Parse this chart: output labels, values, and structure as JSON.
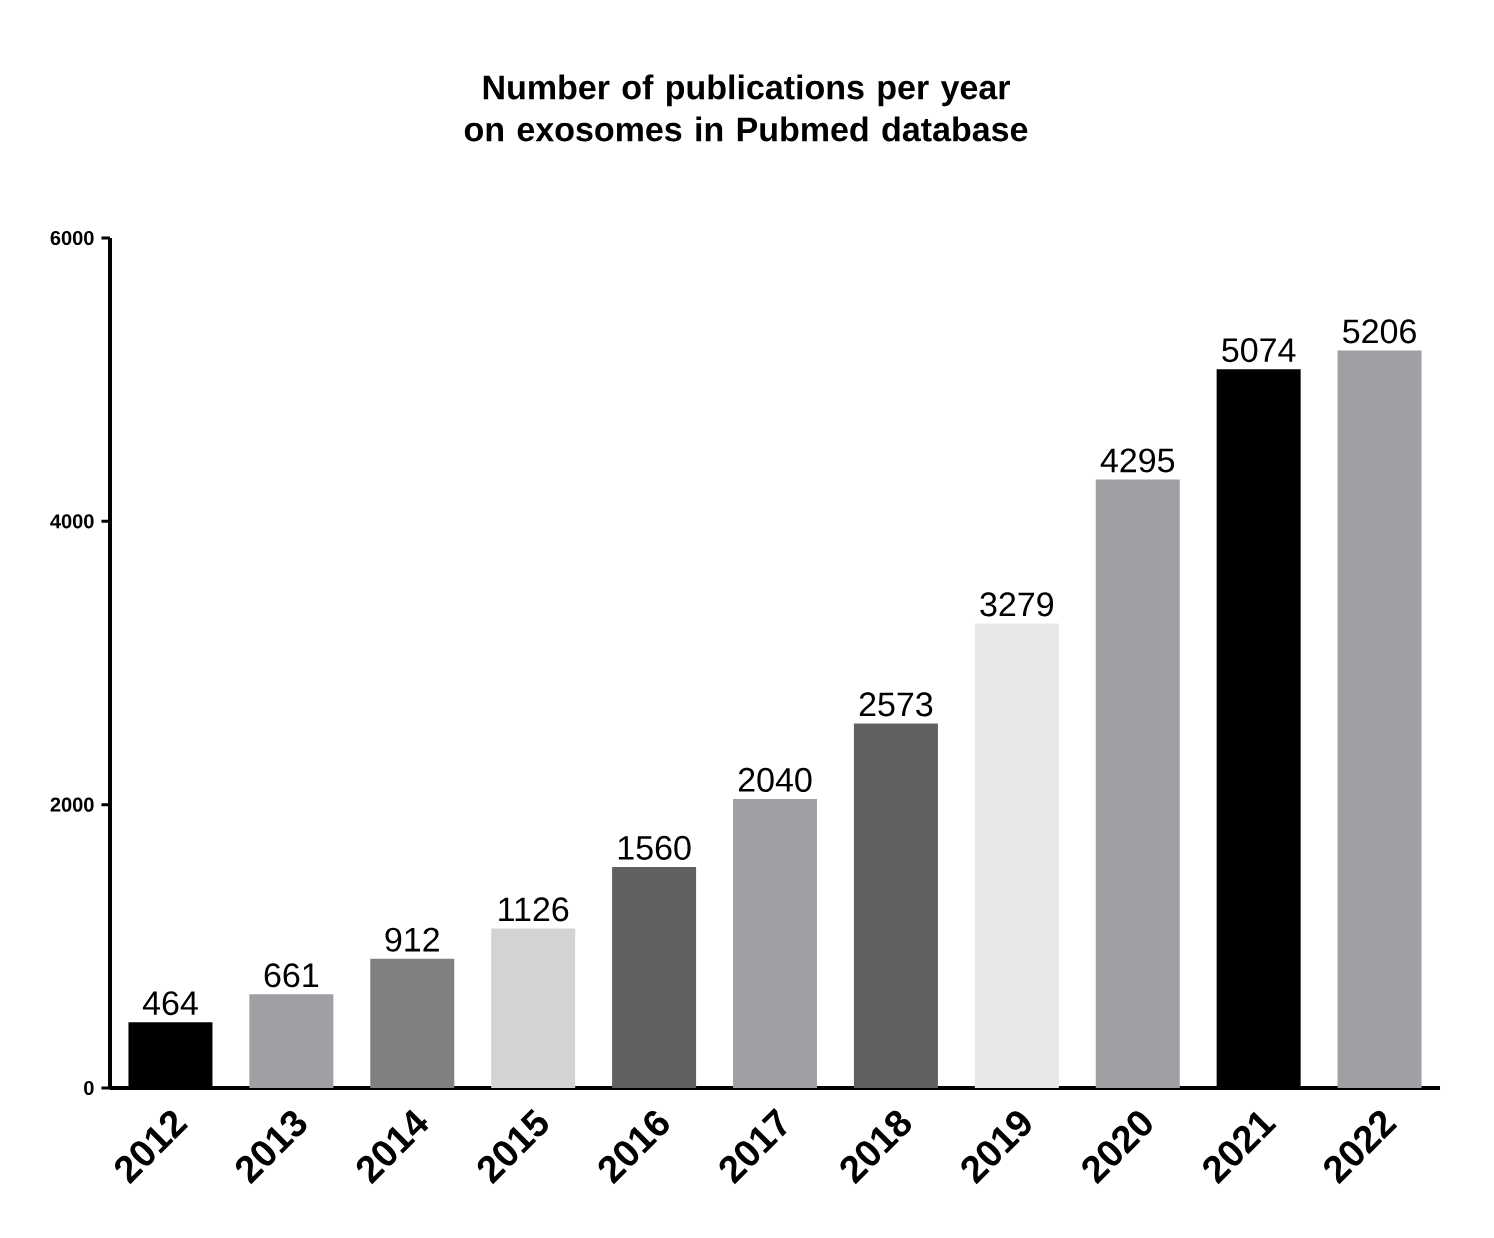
{
  "chart_data": {
    "type": "bar",
    "title": "Number of publications per year on exosomes in Pubmed database",
    "categories": [
      "2012",
      "2013",
      "2014",
      "2015",
      "2016",
      "2017",
      "2018",
      "2019",
      "2020",
      "2021",
      "2022"
    ],
    "values": [
      464,
      661,
      912,
      1126,
      1560,
      2040,
      2573,
      3279,
      4295,
      5074,
      5206
    ],
    "colors": [
      "#000000",
      "#a0a0a4",
      "#808080",
      "#d3d3d3",
      "#606060",
      "#a0a0a4",
      "#606060",
      "#e8e8e8",
      "#a0a0a4",
      "#000000",
      "#a0a0a4"
    ],
    "ylim": [
      0,
      6000
    ],
    "yticks": [
      0,
      2000,
      4000,
      6000
    ],
    "data_labels": true
  }
}
